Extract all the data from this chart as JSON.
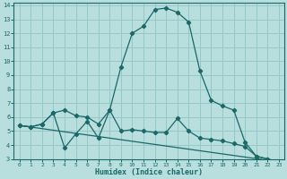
{
  "xlabel": "Humidex (Indice chaleur)",
  "bg_color": "#b8dede",
  "grid_color": "#96c8c8",
  "line_color": "#1a6868",
  "xlim": [
    -0.5,
    23.5
  ],
  "ylim": [
    3,
    14.2
  ],
  "xticks": [
    0,
    1,
    2,
    3,
    4,
    5,
    6,
    7,
    8,
    9,
    10,
    11,
    12,
    13,
    14,
    15,
    16,
    17,
    18,
    19,
    20,
    21,
    22,
    23
  ],
  "yticks": [
    3,
    4,
    5,
    6,
    7,
    8,
    9,
    10,
    11,
    12,
    13,
    14
  ],
  "line1_x": [
    0,
    1,
    2,
    3,
    4,
    5,
    6,
    7,
    8,
    9,
    10,
    11,
    12,
    13,
    14,
    15,
    16,
    17,
    18,
    19,
    20,
    21,
    22,
    23
  ],
  "line1_y": [
    5.4,
    5.3,
    5.5,
    6.3,
    3.8,
    4.8,
    5.7,
    4.5,
    6.5,
    9.6,
    12.0,
    12.5,
    13.7,
    13.8,
    13.5,
    12.8,
    9.3,
    7.2,
    6.8,
    6.5,
    4.2,
    3.2,
    3.0,
    2.8
  ],
  "line2_x": [
    0,
    1,
    2,
    3,
    4,
    5,
    6,
    7,
    8,
    9,
    10,
    11,
    12,
    13,
    14,
    15,
    16,
    17,
    18,
    19,
    20,
    21,
    22,
    23
  ],
  "line2_y": [
    5.4,
    5.3,
    5.5,
    6.3,
    6.5,
    6.1,
    6.0,
    5.5,
    6.5,
    5.0,
    5.1,
    5.0,
    4.9,
    4.9,
    5.9,
    5.0,
    4.5,
    4.4,
    4.3,
    4.1,
    3.9,
    3.2,
    3.0,
    2.8
  ],
  "line3_x": [
    0,
    23
  ],
  "line3_y": [
    5.4,
    2.8
  ]
}
